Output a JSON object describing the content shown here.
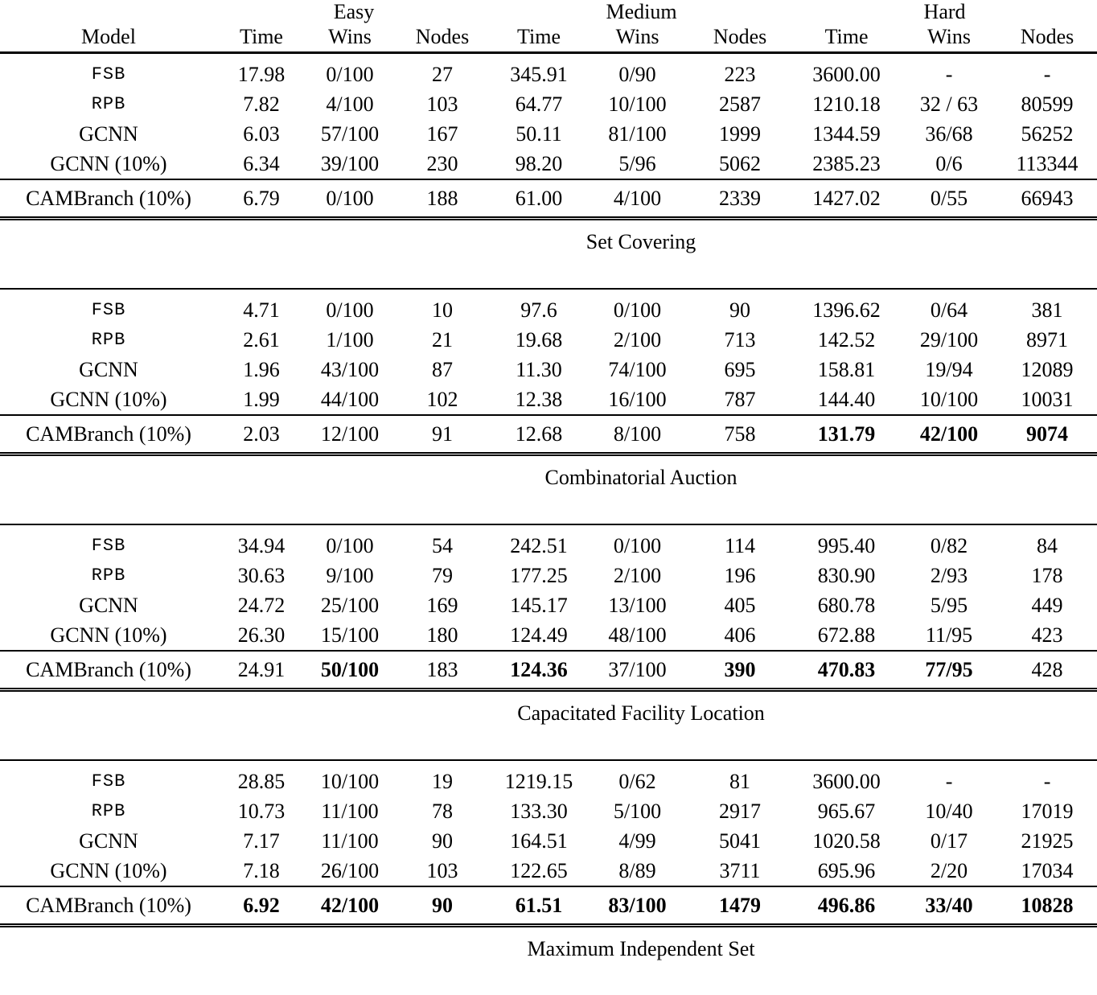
{
  "table": {
    "group_headers": [
      "Easy",
      "Medium",
      "Hard"
    ],
    "column_headers": [
      "Model",
      "Time",
      "Wins",
      "Nodes",
      "Time",
      "Wins",
      "Nodes",
      "Time",
      "Wins",
      "Nodes"
    ],
    "sections": [
      {
        "label": "Set Covering",
        "rows": [
          {
            "model": "FSB",
            "mono": true,
            "values": [
              "17.98",
              "0/100",
              "27",
              "345.91",
              "0/90",
              "223",
              "3600.00",
              "-",
              "-"
            ]
          },
          {
            "model": "RPB",
            "mono": true,
            "values": [
              "7.82",
              "4/100",
              "103",
              "64.77",
              "10/100",
              "2587",
              "1210.18",
              "32 / 63",
              "80599"
            ]
          },
          {
            "model": "GCNN",
            "mono": false,
            "values": [
              "6.03",
              "57/100",
              "167",
              "50.11",
              "81/100",
              "1999",
              "1344.59",
              "36/68",
              "56252"
            ]
          },
          {
            "model": "GCNN (10%)",
            "mono": false,
            "values": [
              "6.34",
              "39/100",
              "230",
              "98.20",
              "5/96",
              "5062",
              "2385.23",
              "0/6",
              "113344"
            ]
          }
        ],
        "cam_row": {
          "model": "CAMBranch (10%)",
          "values": [
            "6.79",
            "0/100",
            "188",
            "61.00",
            "4/100",
            "2339",
            "1427.02",
            "0/55",
            "66943"
          ],
          "bold": [
            false,
            false,
            false,
            false,
            false,
            false,
            false,
            false,
            false
          ]
        }
      },
      {
        "label": "Combinatorial Auction",
        "rows": [
          {
            "model": "FSB",
            "mono": true,
            "values": [
              "4.71",
              "0/100",
              "10",
              "97.6",
              "0/100",
              "90",
              "1396.62",
              "0/64",
              "381"
            ]
          },
          {
            "model": "RPB",
            "mono": true,
            "values": [
              "2.61",
              "1/100",
              "21",
              "19.68",
              "2/100",
              "713",
              "142.52",
              "29/100",
              "8971"
            ]
          },
          {
            "model": "GCNN",
            "mono": false,
            "values": [
              "1.96",
              "43/100",
              "87",
              "11.30",
              "74/100",
              "695",
              "158.81",
              "19/94",
              "12089"
            ]
          },
          {
            "model": "GCNN (10%)",
            "mono": false,
            "values": [
              "1.99",
              "44/100",
              "102",
              "12.38",
              "16/100",
              "787",
              "144.40",
              "10/100",
              "10031"
            ]
          }
        ],
        "cam_row": {
          "model": "CAMBranch (10%)",
          "values": [
            "2.03",
            "12/100",
            "91",
            "12.68",
            "8/100",
            "758",
            "131.79",
            "42/100",
            "9074"
          ],
          "bold": [
            false,
            false,
            false,
            false,
            false,
            false,
            true,
            true,
            true
          ]
        }
      },
      {
        "label": "Capacitated Facility Location",
        "rows": [
          {
            "model": "FSB",
            "mono": true,
            "values": [
              "34.94",
              "0/100",
              "54",
              "242.51",
              "0/100",
              "114",
              "995.40",
              "0/82",
              "84"
            ]
          },
          {
            "model": "RPB",
            "mono": true,
            "values": [
              "30.63",
              "9/100",
              "79",
              "177.25",
              "2/100",
              "196",
              "830.90",
              "2/93",
              "178"
            ]
          },
          {
            "model": "GCNN",
            "mono": false,
            "values": [
              "24.72",
              "25/100",
              "169",
              "145.17",
              "13/100",
              "405",
              "680.78",
              "5/95",
              "449"
            ]
          },
          {
            "model": "GCNN (10%)",
            "mono": false,
            "values": [
              "26.30",
              "15/100",
              "180",
              "124.49",
              "48/100",
              "406",
              "672.88",
              "11/95",
              "423"
            ]
          }
        ],
        "cam_row": {
          "model": "CAMBranch (10%)",
          "values": [
            "24.91",
            "50/100",
            "183",
            "124.36",
            "37/100",
            "390",
            "470.83",
            "77/95",
            "428"
          ],
          "bold": [
            false,
            true,
            false,
            true,
            false,
            true,
            true,
            true,
            false
          ]
        }
      },
      {
        "label": "Maximum Independent Set",
        "rows": [
          {
            "model": "FSB",
            "mono": true,
            "values": [
              "28.85",
              "10/100",
              "19",
              "1219.15",
              "0/62",
              "81",
              "3600.00",
              "-",
              "-"
            ]
          },
          {
            "model": "RPB",
            "mono": true,
            "values": [
              "10.73",
              "11/100",
              "78",
              "133.30",
              "5/100",
              "2917",
              "965.67",
              "10/40",
              "17019"
            ]
          },
          {
            "model": "GCNN",
            "mono": false,
            "values": [
              "7.17",
              "11/100",
              "90",
              "164.51",
              "4/99",
              "5041",
              "1020.58",
              "0/17",
              "21925"
            ]
          },
          {
            "model": "GCNN (10%)",
            "mono": false,
            "values": [
              "7.18",
              "26/100",
              "103",
              "122.65",
              "8/89",
              "3711",
              "695.96",
              "2/20",
              "17034"
            ]
          }
        ],
        "cam_row": {
          "model": "CAMBranch (10%)",
          "values": [
            "6.92",
            "42/100",
            "90",
            "61.51",
            "83/100",
            "1479",
            "496.86",
            "33/40",
            "10828"
          ],
          "bold": [
            true,
            true,
            true,
            true,
            true,
            true,
            true,
            true,
            true
          ]
        }
      }
    ]
  }
}
